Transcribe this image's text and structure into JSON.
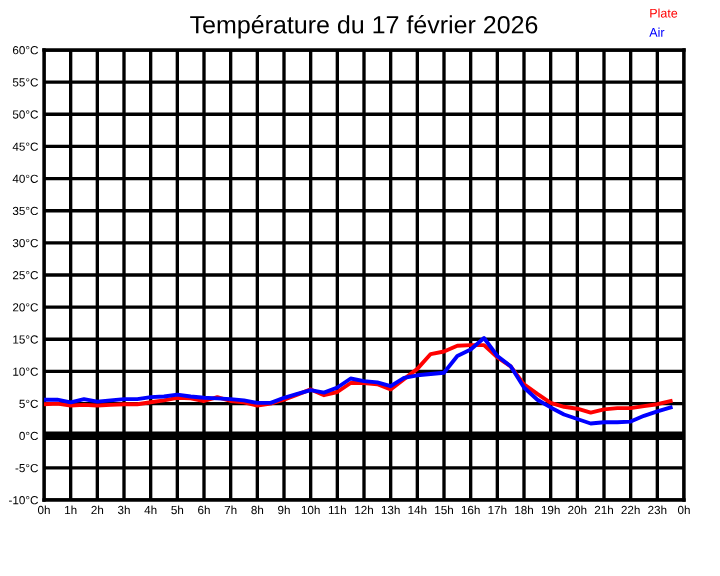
{
  "chart_data": {
    "type": "line",
    "title": "Température du 17 février 2026",
    "xlim": [
      "2026-02-17T00:00",
      "2026-02-18T00:00"
    ],
    "xticks": [
      {
        "value": "2026-02-17T00:00",
        "label": "0h"
      },
      {
        "value": "2026-02-17T01:00",
        "label": "1h"
      },
      {
        "value": "2026-02-17T02:00",
        "label": "2h"
      },
      {
        "value": "2026-02-17T03:00",
        "label": "3h"
      },
      {
        "value": "2026-02-17T04:00",
        "label": "4h"
      },
      {
        "value": "2026-02-17T05:00",
        "label": "5h"
      },
      {
        "value": "2026-02-17T06:00",
        "label": "6h"
      },
      {
        "value": "2026-02-17T07:00",
        "label": "7h"
      },
      {
        "value": "2026-02-17T08:00",
        "label": "8h"
      },
      {
        "value": "2026-02-17T09:00",
        "label": "9h"
      },
      {
        "value": "2026-02-17T10:00",
        "label": "10h"
      },
      {
        "value": "2026-02-17T11:00",
        "label": "11h"
      },
      {
        "value": "2026-02-17T12:00",
        "label": "12h"
      },
      {
        "value": "2026-02-17T13:00",
        "label": "13h"
      },
      {
        "value": "2026-02-17T14:00",
        "label": "14h"
      },
      {
        "value": "2026-02-17T15:00",
        "label": "15h"
      },
      {
        "value": "2026-02-17T16:00",
        "label": "16h"
      },
      {
        "value": "2026-02-17T17:00",
        "label": "17h"
      },
      {
        "value": "2026-02-17T18:00",
        "label": "18h"
      },
      {
        "value": "2026-02-17T19:00",
        "label": "19h"
      },
      {
        "value": "2026-02-17T20:00",
        "label": "20h"
      },
      {
        "value": "2026-02-17T21:00",
        "label": "21h"
      },
      {
        "value": "2026-02-17T22:00",
        "label": "22h"
      },
      {
        "value": "2026-02-17T23:00",
        "label": "23h"
      },
      {
        "value": "2026-02-18T00:00",
        "label": "0h"
      }
    ],
    "ylim": [
      -10,
      60
    ],
    "yticks": [
      {
        "value": -10,
        "label": "-10°C"
      },
      {
        "value": -5,
        "label": "-5°C"
      },
      {
        "value": 0,
        "label": "0°C"
      },
      {
        "value": 5,
        "label": "5°C"
      },
      {
        "value": 10,
        "label": "10°C"
      },
      {
        "value": 15,
        "label": "15°C"
      },
      {
        "value": 20,
        "label": "20°C"
      },
      {
        "value": 25,
        "label": "25°C"
      },
      {
        "value": 30,
        "label": "30°C"
      },
      {
        "value": 35,
        "label": "35°C"
      },
      {
        "value": 40,
        "label": "40°C"
      },
      {
        "value": 45,
        "label": "45°C"
      },
      {
        "value": 50,
        "label": "50°C"
      },
      {
        "value": 55,
        "label": "55°C"
      },
      {
        "value": 60,
        "label": "60°C"
      }
    ],
    "grid": true,
    "legend": "top right",
    "marker": "none",
    "line_style": "solid",
    "ref_lines": [
      {
        "axis": "y",
        "value": 0,
        "color": "#000000"
      }
    ],
    "x": [
      "2026-02-17T00:00",
      "2026-02-17T00:30",
      "2026-02-17T01:00",
      "2026-02-17T01:30",
      "2026-02-17T02:00",
      "2026-02-17T02:30",
      "2026-02-17T03:00",
      "2026-02-17T03:30",
      "2026-02-17T04:00",
      "2026-02-17T04:30",
      "2026-02-17T05:00",
      "2026-02-17T05:30",
      "2026-02-17T06:00",
      "2026-02-17T06:30",
      "2026-02-17T07:00",
      "2026-02-17T07:30",
      "2026-02-17T08:00",
      "2026-02-17T08:30",
      "2026-02-17T09:00",
      "2026-02-17T09:30",
      "2026-02-17T10:00",
      "2026-02-17T10:30",
      "2026-02-17T11:00",
      "2026-02-17T11:30",
      "2026-02-17T12:00",
      "2026-02-17T12:30",
      "2026-02-17T13:00",
      "2026-02-17T13:30",
      "2026-02-17T14:00",
      "2026-02-17T14:30",
      "2026-02-17T15:00",
      "2026-02-17T15:30",
      "2026-02-17T16:00",
      "2026-02-17T16:30",
      "2026-02-17T17:00",
      "2026-02-17T17:30",
      "2026-02-17T18:00",
      "2026-02-17T18:30",
      "2026-02-17T19:00",
      "2026-02-17T19:30",
      "2026-02-17T20:00",
      "2026-02-17T20:30",
      "2026-02-17T21:00",
      "2026-02-17T21:30",
      "2026-02-17T22:00",
      "2026-02-17T22:30",
      "2026-02-17T23:00",
      "2026-02-17T23:30"
    ],
    "series": [
      {
        "name": "Plate",
        "color": "#ff0000",
        "values": [
          4.9,
          5.0,
          4.7,
          4.8,
          4.7,
          4.8,
          4.9,
          4.9,
          5.2,
          5.5,
          5.9,
          5.8,
          5.4,
          6.0,
          5.4,
          5.2,
          4.7,
          5.0,
          5.6,
          6.4,
          7.2,
          6.3,
          6.8,
          8.2,
          8.2,
          8.0,
          7.2,
          8.8,
          10.4,
          12.7,
          13.1,
          14.0,
          14.1,
          14.1,
          12.2,
          10.8,
          8.0,
          6.5,
          5.1,
          4.5,
          4.2,
          3.6,
          4.1,
          4.3,
          4.3,
          4.6,
          4.9,
          5.4
        ]
      },
      {
        "name": "Air",
        "color": "#0000ff",
        "values": [
          5.6,
          5.6,
          5.2,
          5.7,
          5.3,
          5.5,
          5.7,
          5.7,
          6.0,
          6.1,
          6.4,
          6.1,
          5.9,
          5.8,
          5.7,
          5.5,
          5.1,
          5.1,
          5.9,
          6.5,
          7.1,
          6.7,
          7.5,
          8.9,
          8.5,
          8.3,
          7.7,
          9.0,
          9.4,
          9.6,
          9.8,
          12.4,
          13.4,
          15.2,
          12.4,
          10.8,
          7.5,
          5.6,
          4.4,
          3.3,
          2.6,
          1.9,
          2.1,
          2.1,
          2.2,
          3.1,
          3.8,
          4.4
        ]
      }
    ]
  }
}
